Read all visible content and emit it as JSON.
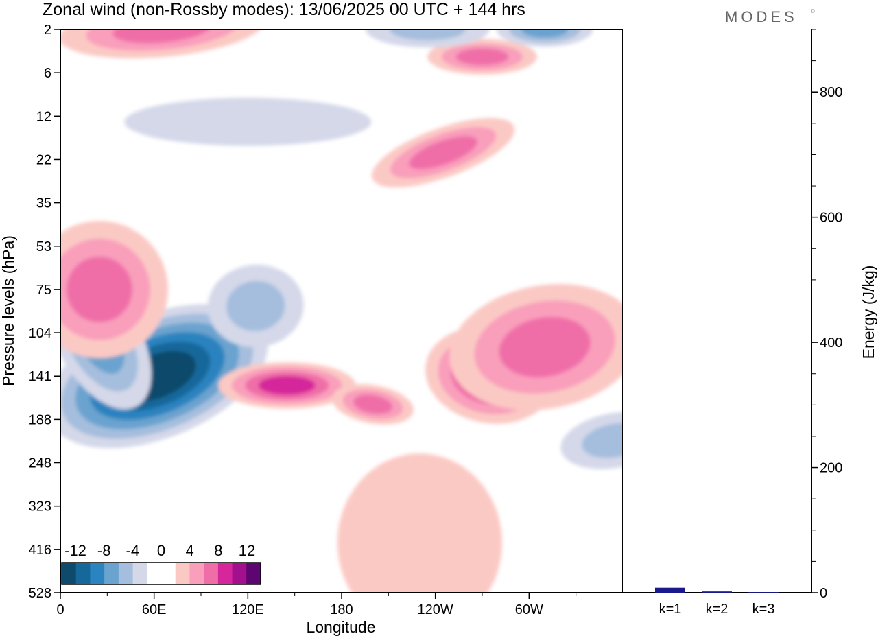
{
  "title": "Zonal wind (non-Rossby modes):  13/06/2025  00 UTC  + 144 hrs",
  "brand": "MODES",
  "brand_mark": "©",
  "chart_data": [
    {
      "type": "heatmap",
      "title": "Zonal wind (non-Rossby modes):  13/06/2025  00 UTC  + 144 hrs",
      "xlabel": "Longitude",
      "ylabel": "Pressure levels (hPa)",
      "x_ticks": [
        "0",
        "60E",
        "120E",
        "180",
        "120W",
        "60W"
      ],
      "x_tick_values": [
        0,
        60,
        120,
        180,
        240,
        300
      ],
      "xlim": [
        0,
        360
      ],
      "y_ticks": [
        "2",
        "6",
        "12",
        "22",
        "35",
        "53",
        "75",
        "104",
        "141",
        "188",
        "248",
        "323",
        "416",
        "528"
      ],
      "colorbar": {
        "labels": [
          "-12",
          "-8",
          "-4",
          "0",
          "4",
          "8",
          "12"
        ],
        "colors": [
          "#0e4a6b",
          "#16689b",
          "#2b83bf",
          "#6aa3cf",
          "#a5bedd",
          "#d4d8e9",
          "#ffffff",
          "#ffffff",
          "#fbc9c4",
          "#f99fbb",
          "#f06ea8",
          "#d5269b",
          "#a2108e",
          "#5d0570"
        ]
      },
      "features": [
        {
          "level": -14,
          "lon": 62,
          "p": 141
        },
        {
          "level": -8,
          "lon": 25,
          "p": 110
        },
        {
          "level": -5,
          "lon": 125,
          "p": 85
        },
        {
          "level": -5,
          "lon": 355,
          "p": 215
        },
        {
          "level": 10,
          "lon": 145,
          "p": 150
        },
        {
          "level": 7,
          "lon": 200,
          "p": 170
        },
        {
          "level": 9,
          "lon": 275,
          "p": 140
        },
        {
          "level": 8,
          "lon": 310,
          "p": 115
        },
        {
          "level": 8,
          "lon": 25,
          "p": 75
        },
        {
          "level": 6,
          "lon": 245,
          "p": 20
        },
        {
          "level": 6,
          "lon": 270,
          "p": 4
        },
        {
          "level": -6,
          "lon": 310,
          "p": 2
        },
        {
          "level": -5,
          "lon": 235,
          "p": 2
        },
        {
          "level": 6,
          "lon": 65,
          "p": 2
        },
        {
          "level": -3,
          "lon": 120,
          "p": 13
        },
        {
          "level": 2,
          "lon": 230,
          "p": 400
        }
      ]
    },
    {
      "type": "bar",
      "categories": [
        "k=1",
        "k=2",
        "k=3"
      ],
      "values": [
        8,
        2,
        1
      ],
      "ylabel": "Energy (J/kg)",
      "ylim": [
        0,
        900
      ],
      "y_ticks": [
        0,
        200,
        400,
        600,
        800
      ],
      "bar_color": "#1a1a8c"
    }
  ]
}
